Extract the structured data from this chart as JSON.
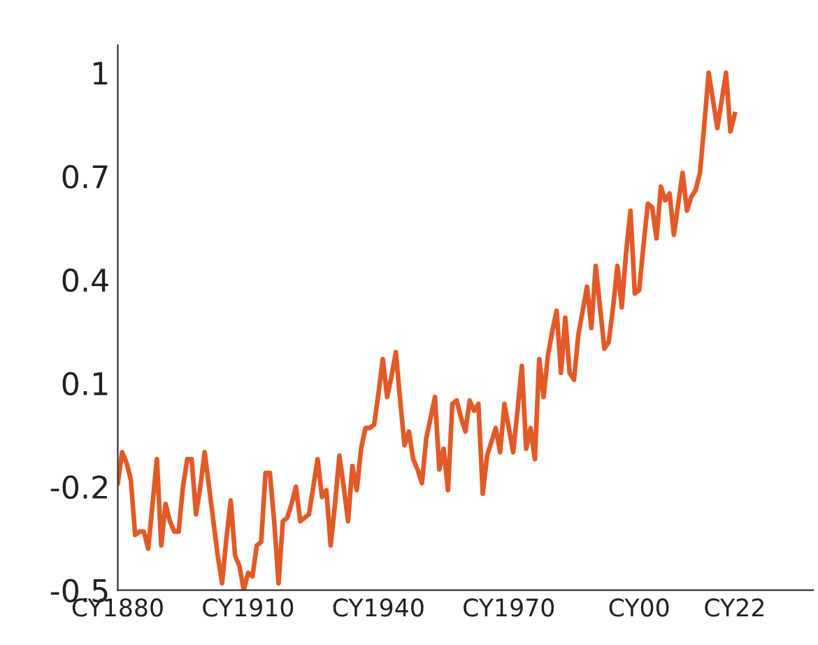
{
  "chart_data": {
    "type": "line",
    "categories": [
      "CY1880",
      null,
      null,
      null,
      null,
      null,
      null,
      null,
      null,
      null,
      null,
      null,
      null,
      null,
      null,
      null,
      null,
      null,
      null,
      null,
      null,
      null,
      null,
      null,
      null,
      null,
      null,
      null,
      null,
      null,
      "CY1910",
      null,
      null,
      null,
      null,
      null,
      null,
      null,
      null,
      null,
      null,
      null,
      null,
      null,
      null,
      null,
      null,
      null,
      null,
      null,
      null,
      null,
      null,
      null,
      null,
      null,
      null,
      null,
      null,
      null,
      "CY1940",
      null,
      null,
      null,
      null,
      null,
      null,
      null,
      null,
      null,
      null,
      null,
      null,
      null,
      null,
      null,
      null,
      null,
      null,
      null,
      null,
      null,
      null,
      null,
      null,
      null,
      null,
      null,
      null,
      null,
      "CY1970",
      null,
      null,
      null,
      null,
      null,
      null,
      null,
      null,
      null,
      null,
      null,
      null,
      null,
      null,
      null,
      null,
      null,
      null,
      null,
      null,
      null,
      null,
      null,
      null,
      null,
      null,
      null,
      null,
      null,
      "CY00",
      null,
      null,
      null,
      null,
      null,
      null,
      null,
      null,
      null,
      null,
      null,
      null,
      null,
      null,
      null,
      null,
      null,
      null,
      null,
      null,
      null,
      "CY22"
    ],
    "series": [
      {
        "color": "#e25a28",
        "values": [
          -0.19,
          -0.1,
          -0.13,
          -0.18,
          -0.34,
          -0.33,
          -0.33,
          -0.38,
          -0.25,
          -0.12,
          -0.37,
          -0.25,
          -0.3,
          -0.33,
          -0.33,
          -0.2,
          -0.12,
          -0.12,
          -0.28,
          -0.2,
          -0.1,
          -0.2,
          -0.3,
          -0.4,
          -0.48,
          -0.35,
          -0.24,
          -0.4,
          -0.43,
          -0.5,
          -0.45,
          -0.46,
          -0.37,
          -0.36,
          -0.16,
          -0.16,
          -0.3,
          -0.48,
          -0.3,
          -0.29,
          -0.25,
          -0.2,
          -0.3,
          -0.29,
          -0.28,
          -0.2,
          -0.12,
          -0.23,
          -0.21,
          -0.37,
          -0.25,
          -0.11,
          -0.2,
          -0.3,
          -0.14,
          -0.21,
          -0.09,
          -0.03,
          -0.03,
          -0.02,
          0.07,
          0.17,
          0.06,
          0.12,
          0.19,
          0.05,
          -0.08,
          -0.04,
          -0.12,
          -0.15,
          -0.19,
          -0.06,
          0.0,
          0.06,
          -0.15,
          -0.09,
          -0.21,
          0.04,
          0.05,
          0.0,
          -0.04,
          0.05,
          0.02,
          0.04,
          -0.22,
          -0.11,
          -0.07,
          -0.03,
          -0.1,
          0.04,
          -0.03,
          -0.1,
          0.02,
          0.15,
          -0.09,
          -0.03,
          -0.12,
          0.17,
          0.06,
          0.18,
          0.25,
          0.31,
          0.13,
          0.29,
          0.13,
          0.11,
          0.24,
          0.31,
          0.38,
          0.26,
          0.44,
          0.32,
          0.2,
          0.22,
          0.32,
          0.44,
          0.32,
          0.48,
          0.6,
          0.36,
          0.37,
          0.5,
          0.62,
          0.61,
          0.52,
          0.67,
          0.63,
          0.65,
          0.53,
          0.62,
          0.71,
          0.6,
          0.64,
          0.66,
          0.71,
          0.85,
          1.0,
          0.92,
          0.84,
          0.92,
          1.0,
          0.83,
          0.88
        ]
      }
    ],
    "ylim": [
      -0.5,
      1.08
    ],
    "yticks": [
      -0.5,
      -0.2,
      0.1,
      0.4,
      0.7,
      1
    ],
    "grid": false,
    "marker": "none",
    "line_style": "solid"
  }
}
